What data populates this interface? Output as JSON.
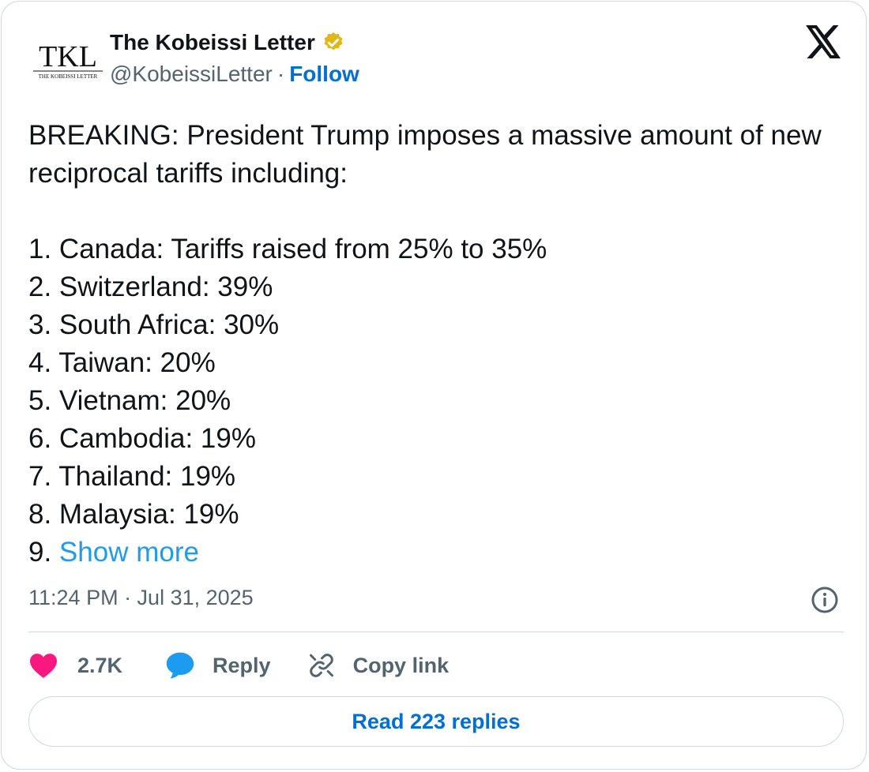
{
  "author": {
    "name": "The Kobeissi Letter",
    "handle": "@KobeissiLetter",
    "separator": "·",
    "follow_label": "Follow",
    "avatar_text": "TKL",
    "avatar_subtext": "THE KOBEISSI LETTER"
  },
  "tweet": {
    "lead": "BREAKING: President Trump imposes a massive amount of new reciprocal tariffs including:",
    "items": [
      "1. Canada: Tariffs raised from 25% to 35%",
      "2. Switzerland: 39%",
      "3. South Africa: 30%",
      "4. Taiwan: 20%",
      "5. Vietnam: 20%",
      "6. Cambodia: 19%",
      "7. Thailand: 19%",
      "8. Malaysia: 19%"
    ],
    "last_prefix": "9. ",
    "show_more_label": "Show more",
    "timestamp": "11:24 PM · Jul 31, 2025"
  },
  "actions": {
    "like_count": "2.7K",
    "reply_label": "Reply",
    "copy_link_label": "Copy link",
    "read_replies_label": "Read 223 replies"
  },
  "colors": {
    "accent": "#1d9bf0",
    "link": "#006fd6",
    "like": "#f91880",
    "verified_badge": "#e2b719",
    "muted": "#536471"
  },
  "icons": [
    "verified-badge-icon",
    "x-logo-icon",
    "info-icon",
    "heart-icon",
    "reply-bubble-icon",
    "link-icon"
  ]
}
